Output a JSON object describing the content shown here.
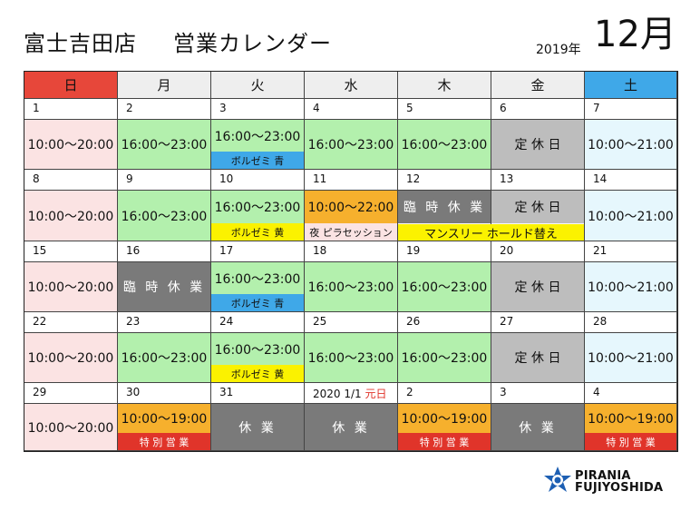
{
  "header": {
    "title": "富士吉田店",
    "subtitle": "営業カレンダー",
    "year": "2019年",
    "month": "12月"
  },
  "weekdays": [
    "日",
    "月",
    "火",
    "水",
    "木",
    "金",
    "土"
  ],
  "colors": {
    "sunday": "#e7473a",
    "saturday": "#3fa8e8",
    "open_pink": "#fbe3e3",
    "open_green": "#b3f0ad",
    "open_sky": "#e6f7fd",
    "closed_grey": "#bdbdbd",
    "temp_closed_dark": "#7a7a7a",
    "special_orange": "#f6b02d",
    "special_red": "#e0342a",
    "event_blue": "#3fa8e8",
    "event_yellow": "#fbf200"
  },
  "weeks": [
    [
      {
        "day": "1",
        "blocks": [
          {
            "text": "10:00～20:00",
            "style": "pink"
          }
        ]
      },
      {
        "day": "2",
        "blocks": [
          {
            "text": "16:00～23:00",
            "style": "green"
          }
        ]
      },
      {
        "day": "3",
        "blocks": [
          {
            "text": "16:00～23:00",
            "style": "green"
          },
          {
            "text": "ボルゼミ 青",
            "style": "blue",
            "small": true
          }
        ]
      },
      {
        "day": "4",
        "blocks": [
          {
            "text": "16:00～23:00",
            "style": "green"
          }
        ]
      },
      {
        "day": "5",
        "blocks": [
          {
            "text": "16:00～23:00",
            "style": "green"
          }
        ]
      },
      {
        "day": "6",
        "blocks": [
          {
            "text": "定 休 日",
            "style": "grey"
          }
        ]
      },
      {
        "day": "7",
        "blocks": [
          {
            "text": "10:00～21:00",
            "style": "sky"
          }
        ]
      }
    ],
    [
      {
        "day": "8",
        "blocks": [
          {
            "text": "10:00～20:00",
            "style": "pink"
          }
        ]
      },
      {
        "day": "9",
        "blocks": [
          {
            "text": "16:00～23:00",
            "style": "green"
          }
        ]
      },
      {
        "day": "10",
        "blocks": [
          {
            "text": "16:00～23:00",
            "style": "green"
          },
          {
            "text": "ボルゼミ 黄",
            "style": "yellow",
            "small": true
          }
        ]
      },
      {
        "day": "11",
        "blocks": [
          {
            "text": "10:00～22:00",
            "style": "orange"
          },
          {
            "text": "夜 ピラセッション",
            "style": "pink",
            "small": true
          }
        ]
      },
      {
        "day": "12",
        "blocks": [
          {
            "text": "臨 時 休 業",
            "style": "dark"
          },
          {
            "text": "",
            "style": "none",
            "small": true
          }
        ]
      },
      {
        "day": "13",
        "blocks": [
          {
            "text": "定 休 日",
            "style": "grey"
          },
          {
            "text": "",
            "style": "none",
            "small": true
          }
        ]
      },
      {
        "day": "14",
        "blocks": [
          {
            "text": "10:00～21:00",
            "style": "sky"
          }
        ]
      }
    ],
    [
      {
        "day": "15",
        "blocks": [
          {
            "text": "10:00～20:00",
            "style": "pink"
          }
        ]
      },
      {
        "day": "16",
        "blocks": [
          {
            "text": "臨 時 休 業",
            "style": "dark"
          }
        ]
      },
      {
        "day": "17",
        "blocks": [
          {
            "text": "16:00～23:00",
            "style": "green"
          },
          {
            "text": "ボルゼミ 青",
            "style": "blue",
            "small": true
          }
        ]
      },
      {
        "day": "18",
        "blocks": [
          {
            "text": "16:00～23:00",
            "style": "green"
          }
        ]
      },
      {
        "day": "19",
        "blocks": [
          {
            "text": "16:00～23:00",
            "style": "green"
          }
        ]
      },
      {
        "day": "20",
        "blocks": [
          {
            "text": "定 休 日",
            "style": "grey"
          }
        ]
      },
      {
        "day": "21",
        "blocks": [
          {
            "text": "10:00～21:00",
            "style": "sky"
          }
        ]
      }
    ],
    [
      {
        "day": "22",
        "blocks": [
          {
            "text": "10:00～20:00",
            "style": "pink"
          }
        ]
      },
      {
        "day": "23",
        "blocks": [
          {
            "text": "16:00～23:00",
            "style": "green"
          }
        ]
      },
      {
        "day": "24",
        "blocks": [
          {
            "text": "16:00～23:00",
            "style": "green"
          },
          {
            "text": "ボルゼミ 黄",
            "style": "yellow",
            "small": true
          }
        ]
      },
      {
        "day": "25",
        "blocks": [
          {
            "text": "16:00～23:00",
            "style": "green"
          }
        ]
      },
      {
        "day": "26",
        "blocks": [
          {
            "text": "16:00～23:00",
            "style": "green"
          }
        ]
      },
      {
        "day": "27",
        "blocks": [
          {
            "text": "定 休 日",
            "style": "grey"
          }
        ]
      },
      {
        "day": "28",
        "blocks": [
          {
            "text": "10:00～21:00",
            "style": "sky"
          }
        ]
      }
    ],
    [
      {
        "day": "29",
        "blocks": [
          {
            "text": "10:00～20:00",
            "style": "pink"
          }
        ]
      },
      {
        "day": "30",
        "blocks": [
          {
            "text": "10:00～19:00",
            "style": "orange"
          },
          {
            "text": "特 別 営 業",
            "style": "red",
            "small": true
          }
        ]
      },
      {
        "day": "31",
        "blocks": [
          {
            "text": "休 業",
            "style": "dark"
          }
        ]
      },
      {
        "day": "2020 1/1",
        "day_note": "元日",
        "blocks": [
          {
            "text": "休 業",
            "style": "dark"
          }
        ]
      },
      {
        "day": "2",
        "blocks": [
          {
            "text": "10:00～19:00",
            "style": "orange"
          },
          {
            "text": "特 別 営 業",
            "style": "red",
            "small": true
          }
        ]
      },
      {
        "day": "3",
        "blocks": [
          {
            "text": "休 業",
            "style": "dark"
          }
        ]
      },
      {
        "day": "4",
        "blocks": [
          {
            "text": "10:00～19:00",
            "style": "orange"
          },
          {
            "text": "特 別 営 業",
            "style": "red",
            "small": true
          }
        ]
      }
    ]
  ],
  "spanning_events": [
    {
      "text": "マンスリー ホールド替え",
      "style": "yellow"
    }
  ],
  "logo": {
    "line1": "PIRANIA",
    "line2": "FUJIYOSHIDA",
    "icon": "piranha-star-logo-icon"
  }
}
